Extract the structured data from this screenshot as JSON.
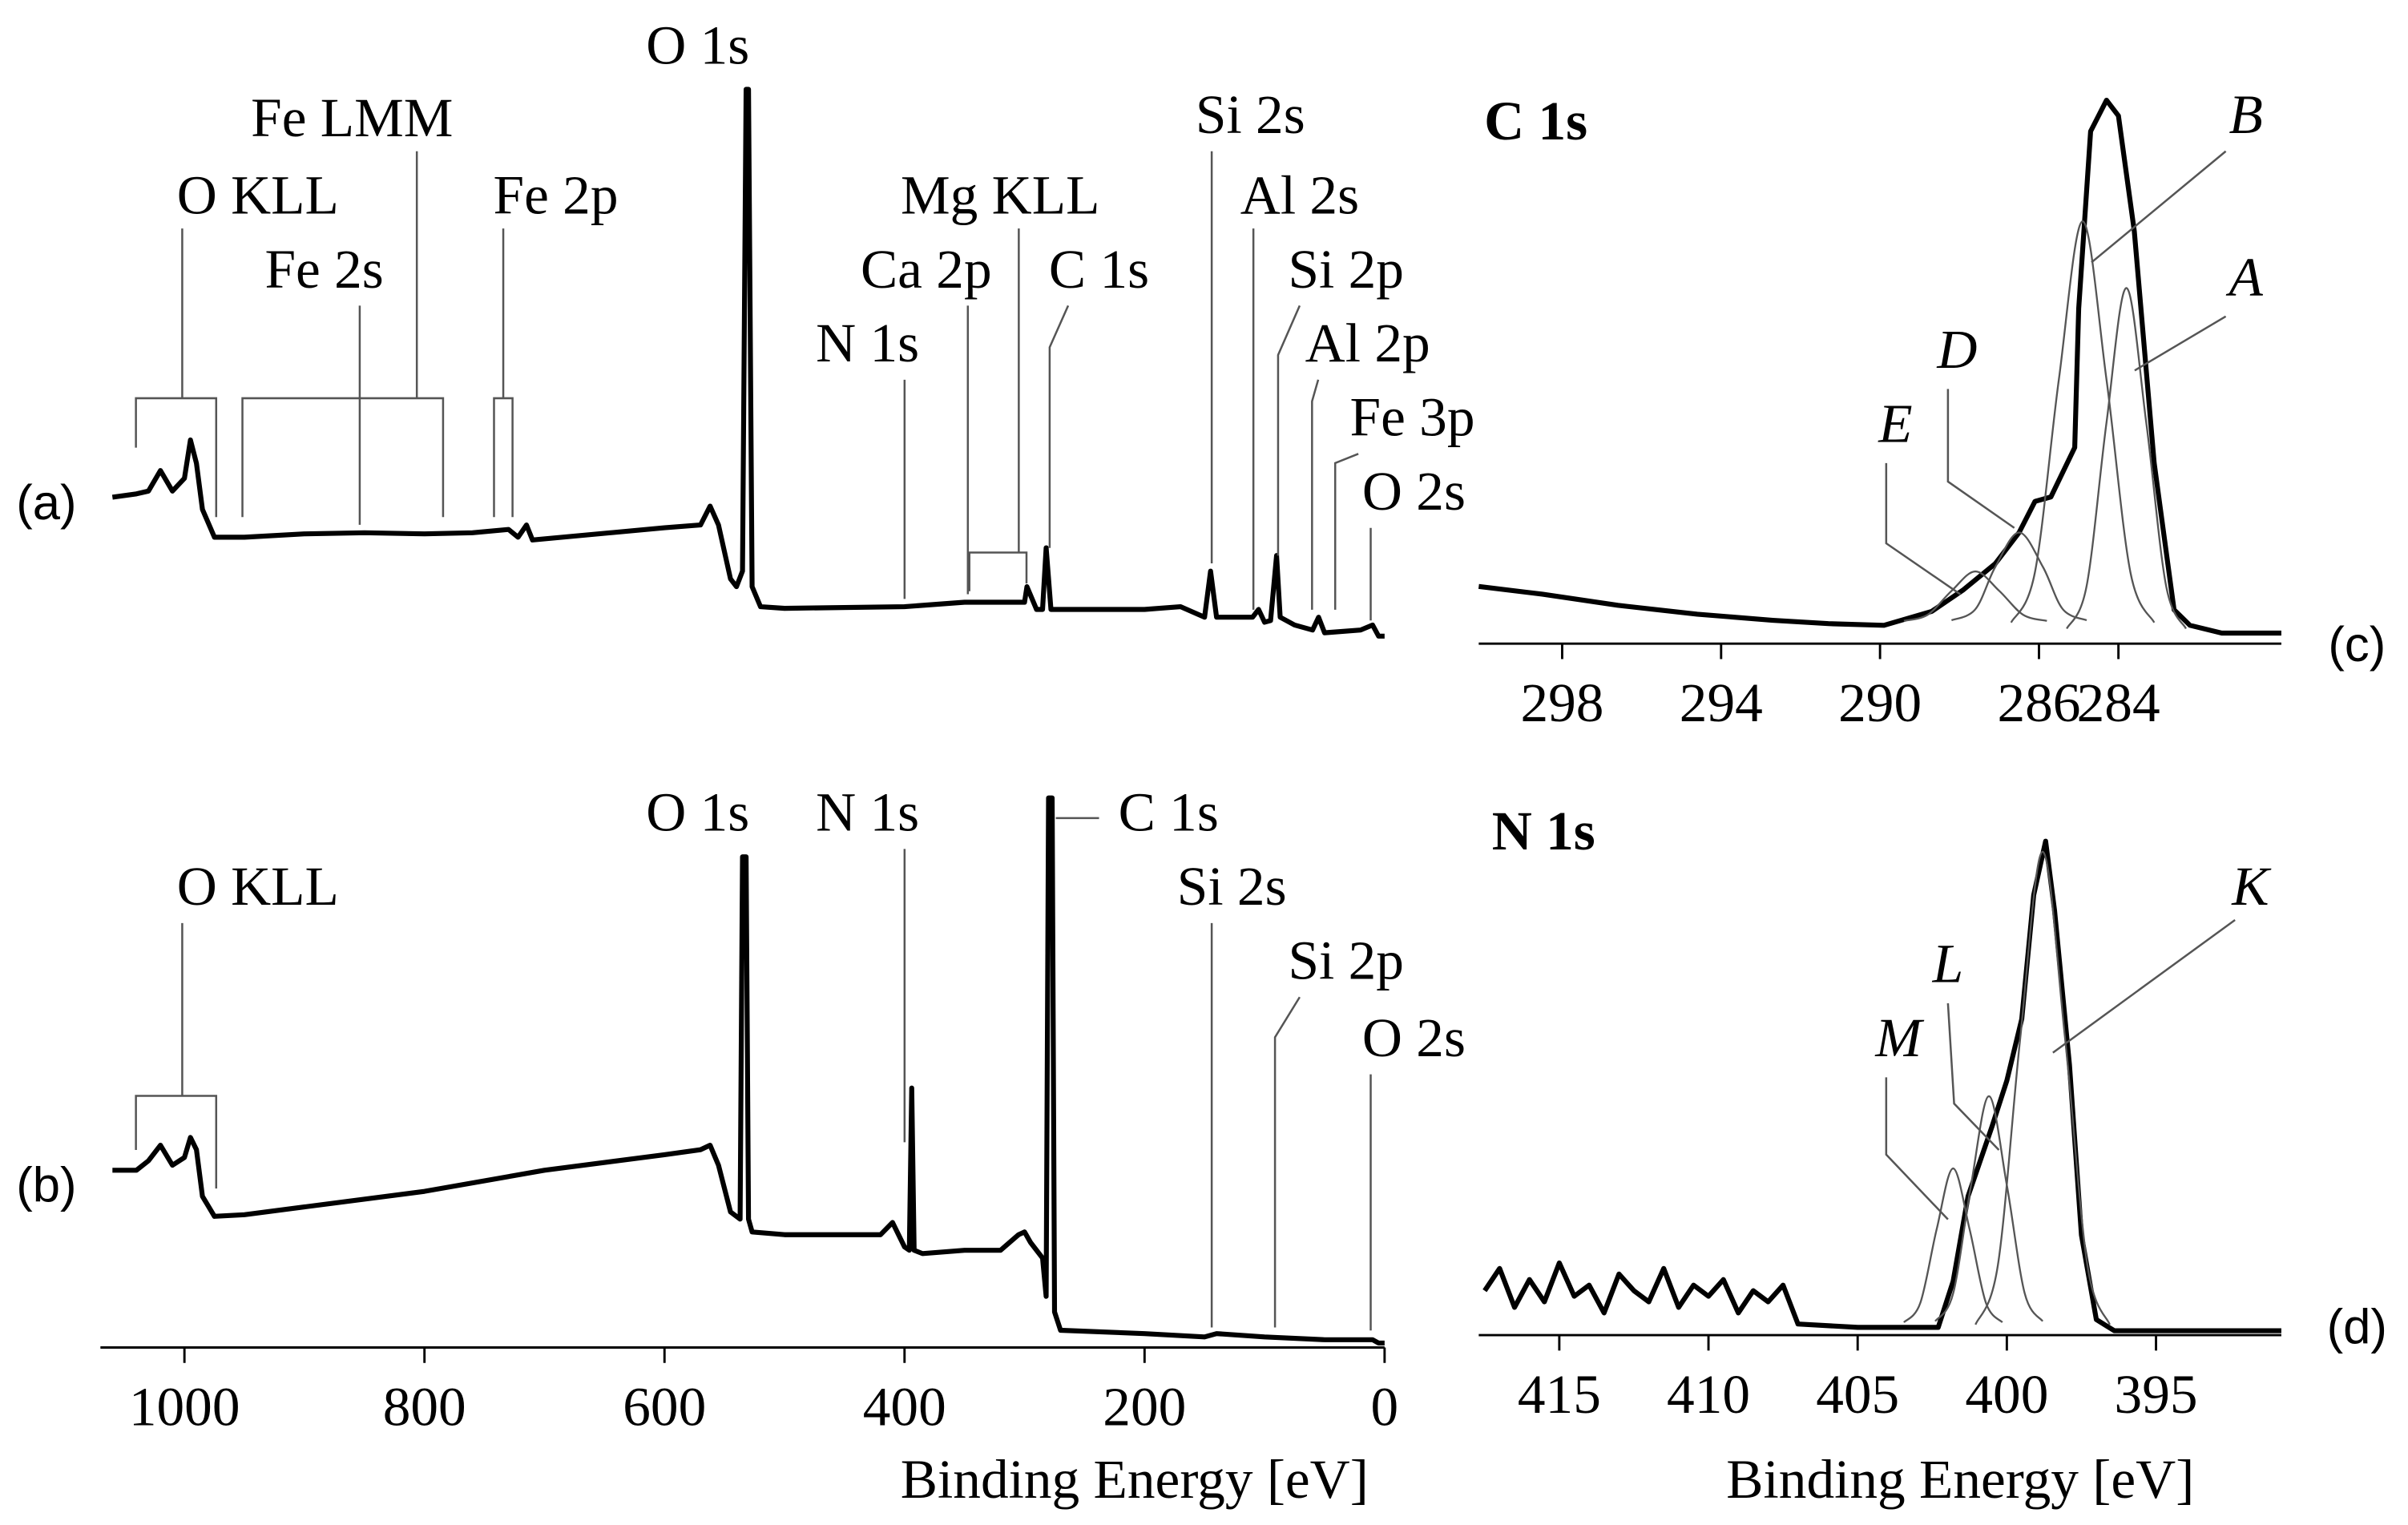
{
  "chart_data": [
    {
      "type": "line",
      "panel_label": "(a)",
      "xlim": [
        1070,
        0
      ],
      "ylim": [
        0,
        100
      ],
      "x": [
        1060,
        1040,
        1030,
        1020,
        1010,
        1000,
        995,
        990,
        985,
        975,
        950,
        900,
        850,
        800,
        760,
        730,
        722,
        715,
        710,
        600,
        570,
        562,
        555,
        545,
        540,
        535,
        532,
        530,
        527,
        520,
        500,
        400,
        350,
        300,
        298,
        290,
        285,
        282,
        278,
        200,
        170,
        150,
        145,
        140,
        110,
        105,
        100,
        95,
        90,
        87,
        75,
        60,
        55,
        50,
        20,
        10,
        5,
        0
      ],
      "series": [
        {
          "color": "#000000",
          "values": [
            25.8,
            26.4,
            26.9,
            30.6,
            26.9,
            29.2,
            36.1,
            31.9,
            23.6,
            18.6,
            18.6,
            19.2,
            19.4,
            19.2,
            19.4,
            20,
            18.6,
            20.8,
            18.1,
            20.3,
            20.8,
            24.2,
            20.8,
            11.1,
            9.7,
            12.5,
            99.2,
            99.2,
            9.7,
            6.1,
            5.8,
            6.1,
            6.9,
            6.9,
            9.7,
            5.6,
            5.6,
            16.7,
            5.6,
            5.6,
            6.1,
            4.2,
            12.5,
            4.2,
            4.2,
            5.6,
            3.3,
            3.6,
            15.3,
            4.2,
            2.8,
            1.9,
            4.2,
            1.4,
            1.9,
            2.8,
            0.8,
            0.8
          ]
        }
      ],
      "annotations": [
        "O 1s",
        "Fe LMM",
        "O KLL",
        "Fe 2p",
        "Fe 2s",
        "Mg KLL",
        "Ca 2p",
        "C 1s",
        "N 1s",
        "Si 2s",
        "Al 2s",
        "Si 2p",
        "Al 2p",
        "Fe 3p",
        "O 2s"
      ]
    },
    {
      "type": "line",
      "panel_label": "(b)",
      "xlim": [
        1070,
        0
      ],
      "ylim": [
        0,
        100
      ],
      "xticks": [
        1000,
        800,
        600,
        400,
        200,
        0
      ],
      "x_label": "Binding Energy [eV]",
      "x": [
        1060,
        1040,
        1030,
        1020,
        1010,
        1000,
        995,
        990,
        985,
        975,
        950,
        900,
        800,
        700,
        600,
        570,
        562,
        555,
        545,
        537,
        535,
        532,
        530,
        527,
        500,
        420,
        410,
        400,
        396,
        394,
        392,
        385,
        350,
        320,
        305,
        300,
        295,
        285,
        282,
        280,
        277,
        275,
        270,
        200,
        150,
        140,
        100,
        50,
        10,
        5,
        0
      ],
      "series": [
        {
          "color": "#000000",
          "values": [
            31.9,
            31.9,
            33.6,
            36.4,
            32.8,
            34.2,
            37.8,
            35.6,
            27.2,
            23.6,
            23.9,
            25.3,
            28.1,
            31.9,
            34.7,
            35.6,
            36.4,
            32.8,
            24.4,
            23.1,
            88.3,
            88.3,
            23.1,
            20.8,
            20.3,
            20.3,
            22.5,
            18.1,
            17.5,
            46.7,
            17.5,
            16.9,
            17.5,
            17.5,
            20.3,
            20.8,
            18.9,
            16.1,
            9.2,
            98.9,
            98.9,
            6.4,
            3.1,
            2.5,
            1.9,
            2.5,
            1.9,
            1.4,
            1.4,
            0.8,
            0.8
          ]
        }
      ],
      "annotations": [
        "O 1s",
        "N 1s",
        "C 1s",
        "Si 2s",
        "Si 2p",
        "O 2s",
        "O KLL"
      ]
    },
    {
      "type": "line",
      "title": "C 1s",
      "panel_label": "(c)",
      "xlim": [
        300.1,
        279.9
      ],
      "ylim": [
        0,
        100
      ],
      "xticks": [
        298,
        294,
        290,
        286,
        284
      ],
      "x": [
        300.1,
        298.5,
        296.6,
        294.6,
        292.7,
        291.3,
        289.9,
        288.7,
        287.9,
        287.1,
        286.5,
        286.1,
        285.7,
        285.1,
        285.0,
        284.7,
        284.3,
        284.0,
        283.6,
        283.1,
        282.6,
        282.2,
        281.4,
        279.9
      ],
      "series": [
        {
          "color": "#000000",
          "values": [
            10.3,
            8.9,
            6.9,
            5.3,
            4.2,
            3.6,
            3.3,
            5.8,
            9.7,
            14.4,
            20,
            25.6,
            26.4,
            35.3,
            60.3,
            92.2,
            97.8,
            95,
            74.2,
            32.5,
            6.1,
            3.3,
            1.9,
            1.9
          ]
        },
        {
          "name": "A",
          "color": "#555555",
          "x": [
            285.3,
            284.8,
            284.3,
            283.8,
            283.3,
            282.8,
            282.3
          ],
          "values": [
            2.7,
            10.4,
            39.8,
            64,
            39.8,
            10.4,
            2.7
          ]
        },
        {
          "name": "B",
          "color": "#555555",
          "x": [
            286.7,
            286.1,
            285.5,
            284.9,
            284.3,
            283.7,
            283.1
          ],
          "values": [
            3.8,
            12.9,
            47.5,
            76,
            47.5,
            12.9,
            3.8
          ]
        },
        {
          "name": "D",
          "color": "#555555",
          "x": [
            288.2,
            287.6,
            287.1,
            286.5,
            285.9,
            285.4,
            284.8
          ],
          "values": [
            4.2,
            6.2,
            13.8,
            20,
            13.8,
            6.2,
            4.2
          ]
        },
        {
          "name": "E",
          "color": "#555555",
          "x": [
            289.4,
            288.8,
            288.2,
            287.6,
            287.0,
            286.4,
            285.8
          ],
          "values": [
            4.1,
            5.2,
            9.5,
            13,
            9.5,
            5.2,
            4.1
          ]
        }
      ]
    },
    {
      "type": "line",
      "title": "N 1s",
      "panel_label": "(d)",
      "xlim": [
        417.7,
        390.8
      ],
      "ylim": [
        0,
        100
      ],
      "xticks": [
        415,
        410,
        405,
        400,
        395
      ],
      "x_label": "Binding Energy [eV]",
      "x": [
        417.5,
        417,
        416.5,
        416,
        415.5,
        415,
        414.5,
        414,
        413.5,
        413,
        412.5,
        412,
        411.5,
        411,
        410.5,
        410,
        409.5,
        409,
        408.5,
        408,
        407.5,
        407,
        405,
        403,
        402.3,
        401.8,
        401.3,
        400.5,
        400.0,
        399.5,
        399.1,
        398.7,
        398.4,
        397.9,
        397.5,
        397.0,
        396.4,
        390.8
      ],
      "series": [
        {
          "color": "#000000",
          "values": [
            8,
            12,
            5,
            10,
            6,
            13,
            7,
            9,
            4,
            11,
            8,
            6,
            12,
            5,
            9,
            7,
            10,
            4,
            8,
            6,
            9,
            2,
            1.4,
            1.4,
            1.4,
            9.7,
            25,
            37.5,
            45.8,
            56.9,
            79.2,
            88.9,
            76.4,
            48.6,
            18,
            2.8,
            0.8,
            0.8
          ]
        },
        {
          "name": "K",
          "color": "#555555",
          "x": [
            401.05,
            400.3,
            399.55,
            398.8,
            398.05,
            397.3,
            396.55
          ],
          "values": [
            1.9,
            12.6,
            53.5,
            87,
            53.5,
            12.6,
            1.9
          ]
        },
        {
          "name": "L",
          "color": "#555555",
          "x": [
            402.4,
            401.8,
            401.2,
            400.6,
            400.0,
            399.4,
            398.8
          ],
          "values": [
            2.5,
            7.5,
            27,
            43,
            27,
            7.5,
            2.5
          ]
        },
        {
          "name": "M",
          "color": "#555555",
          "x": [
            403.45,
            402.9,
            402.35,
            401.8,
            401.25,
            400.7,
            400.15
          ],
          "values": [
            2.3,
            5.8,
            19.1,
            30,
            19.1,
            5.8,
            2.3
          ]
        }
      ]
    }
  ]
}
